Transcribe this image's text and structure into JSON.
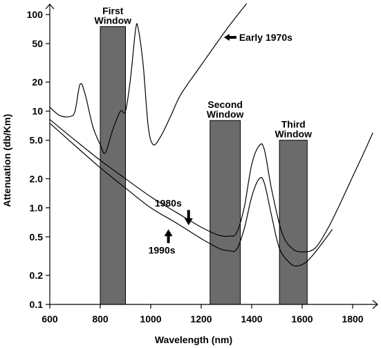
{
  "chart_data": {
    "type": "line",
    "title": "",
    "xlabel": "Wavelength (nm)",
    "ylabel": "Attenuation (db/Km)",
    "xlim": [
      600,
      1900
    ],
    "ylim": [
      0.1,
      110
    ],
    "yscale": "log",
    "grid": false,
    "x_ticks": [
      600,
      800,
      1000,
      1200,
      1400,
      1600,
      1800
    ],
    "y_ticks": [
      {
        "value": 0.1,
        "label": "0.1"
      },
      {
        "value": 0.2,
        "label": "0.2"
      },
      {
        "value": 0.5,
        "label": "0.5"
      },
      {
        "value": 1.0,
        "label": "1.0"
      },
      {
        "value": 2.0,
        "label": "2.0"
      },
      {
        "value": 5.0,
        "label": "5.0"
      },
      {
        "value": 10,
        "label": "10"
      },
      {
        "value": 20,
        "label": "20"
      },
      {
        "value": 50,
        "label": "50"
      },
      {
        "value": 100,
        "label": "100"
      }
    ],
    "windows": [
      {
        "label_lines": [
          "First",
          "Window"
        ],
        "x_start": 800,
        "x_end": 900,
        "top": 75
      },
      {
        "label_lines": [
          "Second",
          "Window"
        ],
        "x_start": 1235,
        "x_end": 1355,
        "top": 8
      },
      {
        "label_lines": [
          "Third",
          "Window"
        ],
        "x_start": 1510,
        "x_end": 1620,
        "top": 5
      }
    ],
    "series": [
      {
        "name": "Early 1970s",
        "points": [
          [
            600,
            11
          ],
          [
            640,
            9
          ],
          [
            680,
            8.8
          ],
          [
            700,
            10
          ],
          [
            720,
            19
          ],
          [
            740,
            15
          ],
          [
            770,
            7
          ],
          [
            800,
            4.5
          ],
          [
            820,
            3.7
          ],
          [
            850,
            6.5
          ],
          [
            880,
            10
          ],
          [
            900,
            10
          ],
          [
            920,
            22
          ],
          [
            940,
            70
          ],
          [
            950,
            72
          ],
          [
            970,
            30
          ],
          [
            990,
            7
          ],
          [
            1010,
            4.5
          ],
          [
            1040,
            5.5
          ],
          [
            1080,
            9
          ],
          [
            1120,
            15
          ],
          [
            1200,
            30
          ],
          [
            1300,
            70
          ],
          [
            1380,
            130
          ]
        ]
      },
      {
        "name": "1980s",
        "points": [
          [
            600,
            8.2
          ],
          [
            700,
            5
          ],
          [
            800,
            3.1
          ],
          [
            900,
            2
          ],
          [
            1000,
            1.3
          ],
          [
            1100,
            0.9
          ],
          [
            1200,
            0.63
          ],
          [
            1270,
            0.52
          ],
          [
            1310,
            0.51
          ],
          [
            1340,
            0.55
          ],
          [
            1370,
            1
          ],
          [
            1400,
            2.8
          ],
          [
            1430,
            4.4
          ],
          [
            1450,
            4
          ],
          [
            1480,
            1.5
          ],
          [
            1520,
            0.55
          ],
          [
            1560,
            0.38
          ],
          [
            1600,
            0.35
          ],
          [
            1650,
            0.38
          ],
          [
            1700,
            0.6
          ],
          [
            1750,
            1.1
          ],
          [
            1800,
            2.1
          ],
          [
            1850,
            4
          ],
          [
            1880,
            6
          ]
        ]
      },
      {
        "name": "1990s",
        "points": [
          [
            600,
            7.5
          ],
          [
            700,
            4.4
          ],
          [
            800,
            2.6
          ],
          [
            900,
            1.6
          ],
          [
            1000,
            1
          ],
          [
            1100,
            0.7
          ],
          [
            1200,
            0.48
          ],
          [
            1270,
            0.38
          ],
          [
            1310,
            0.36
          ],
          [
            1340,
            0.37
          ],
          [
            1370,
            0.6
          ],
          [
            1400,
            1.3
          ],
          [
            1430,
            2
          ],
          [
            1450,
            1.8
          ],
          [
            1480,
            0.8
          ],
          [
            1510,
            0.38
          ],
          [
            1550,
            0.27
          ],
          [
            1580,
            0.25
          ],
          [
            1620,
            0.28
          ],
          [
            1670,
            0.4
          ],
          [
            1720,
            0.6
          ]
        ]
      }
    ],
    "annotations": [
      {
        "text": "Early 1970s",
        "arrow": "left",
        "x": 1290,
        "y": 58
      },
      {
        "text": "1980s",
        "arrow": "down",
        "x": 1150,
        "y": 0.95
      },
      {
        "text": "1990s",
        "arrow": "up",
        "x": 1070,
        "y": 0.6
      }
    ]
  }
}
